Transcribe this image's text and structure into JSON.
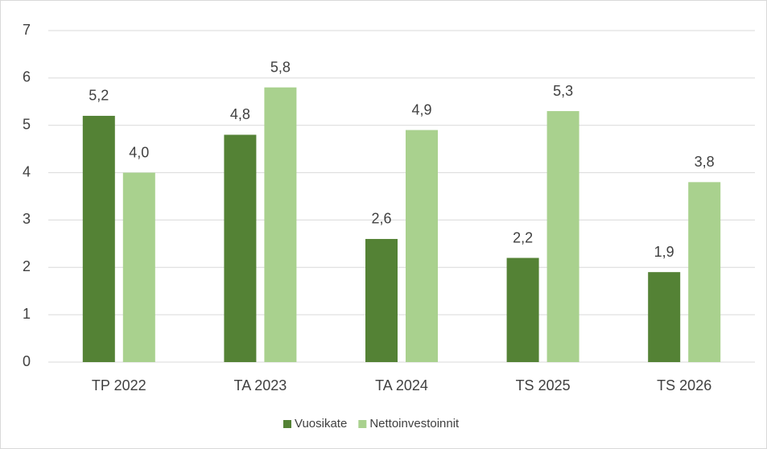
{
  "chart_data": {
    "type": "bar",
    "categories": [
      "TP 2022",
      "TA 2023",
      "TA 2024",
      "TS 2025",
      "TS 2026"
    ],
    "series": [
      {
        "name": "Vuosikate",
        "color": "#548235",
        "values": [
          5.2,
          4.8,
          2.6,
          2.2,
          1.9
        ],
        "value_labels": [
          "5,2",
          "4,8",
          "2,6",
          "2,2",
          "1,9"
        ]
      },
      {
        "name": "Nettoinvestoinnit",
        "color": "#a9d18e",
        "values": [
          4.0,
          5.8,
          4.9,
          5.3,
          3.8
        ],
        "value_labels": [
          "4,0",
          "5,8",
          "4,9",
          "5,3",
          "3,8"
        ]
      }
    ],
    "ylim": [
      0,
      7
    ],
    "yticks": [
      0,
      1,
      2,
      3,
      4,
      5,
      6,
      7
    ],
    "grid": true,
    "legend": "bottom"
  }
}
